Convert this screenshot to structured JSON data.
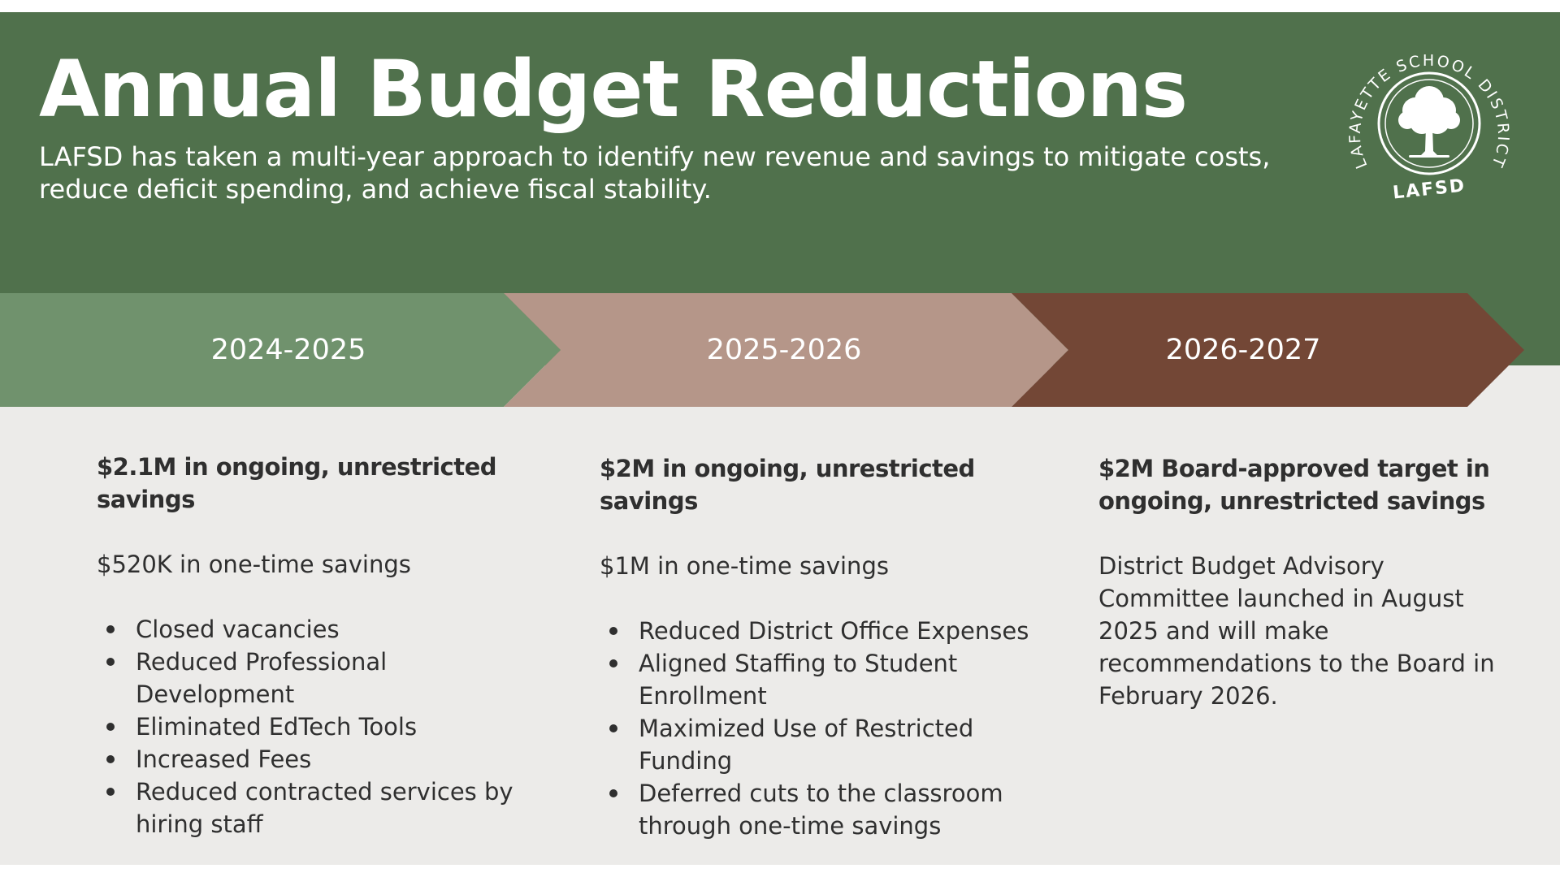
{
  "header": {
    "title": "Annual Budget Reductions",
    "subtitle": "LAFSD has taken a multi-year approach to identify new revenue and savings to mitigate costs, reduce deficit spending, and achieve fiscal stability."
  },
  "logo": {
    "ring_text": "LAFAYETTE SCHOOL DISTRICT",
    "initials": "LAFSD",
    "icon": "tree-icon"
  },
  "colors": {
    "header_green": "#50714c",
    "year1": "#70926d",
    "year2": "#b59689",
    "year3": "#734736",
    "background": "#ecebe9"
  },
  "timeline": [
    {
      "year": "2024-2025",
      "heading": "$2.1M in ongoing, unrestricted savings",
      "one_time": "$520K in one-time savings",
      "items": [
        "Closed vacancies",
        "Reduced Professional Development",
        "Eliminated EdTech Tools",
        "Increased Fees",
        "Reduced contracted services by hiring staff"
      ]
    },
    {
      "year": "2025-2026",
      "heading": "$2M in ongoing, unrestricted savings",
      "one_time": "$1M in one-time savings",
      "items": [
        "Reduced District Office Expenses",
        "Aligned Staffing to Student Enrollment",
        "Maximized Use of Restricted Funding",
        "Deferred cuts to the classroom through one-time savings"
      ]
    },
    {
      "year": "2026-2027",
      "heading": "$2M Board-approved target in ongoing, unrestricted savings",
      "note": "District Budget Advisory Committee launched in August 2025 and will make recommendations to the Board in February 2026."
    }
  ]
}
